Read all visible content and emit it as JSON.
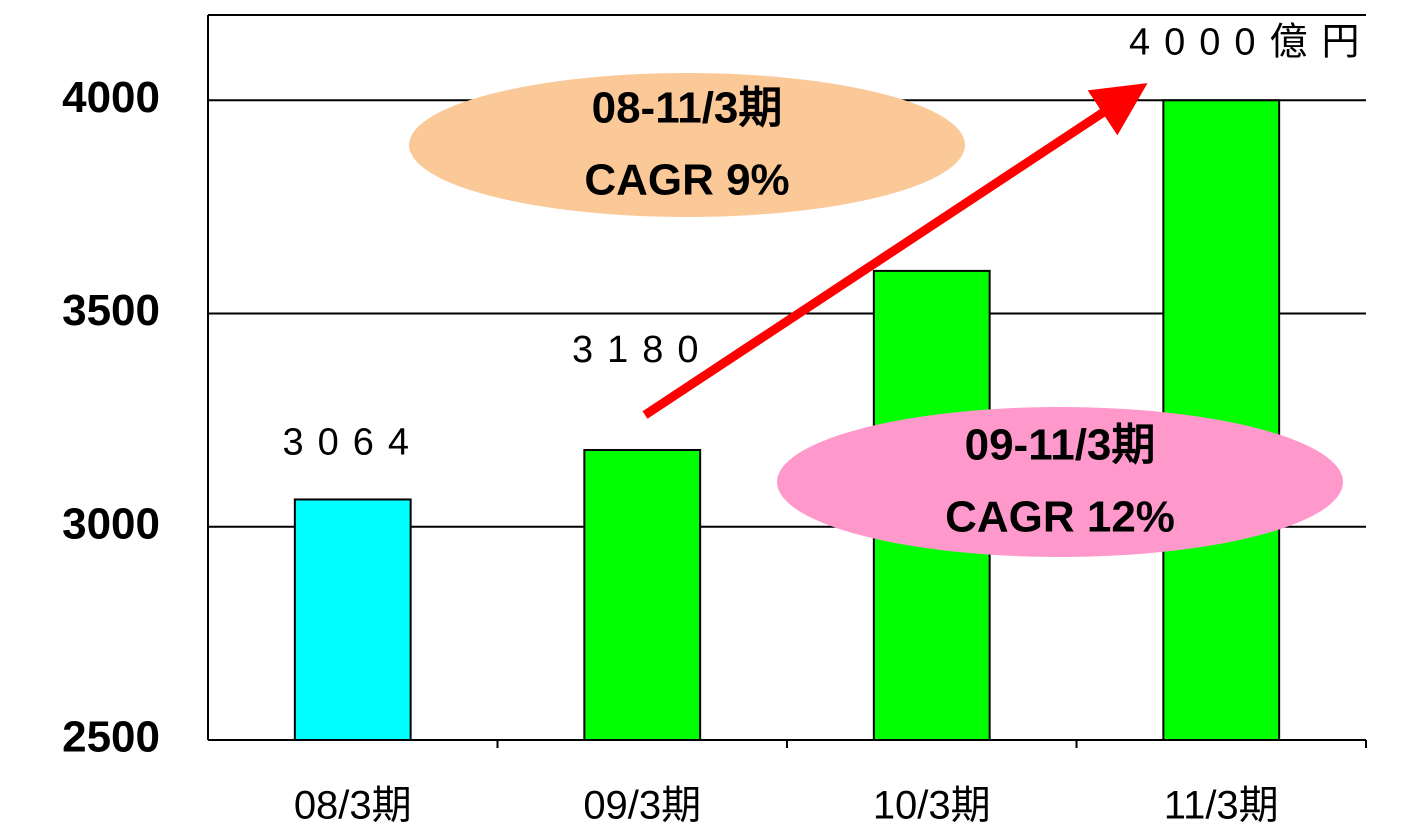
{
  "chart_data": {
    "type": "bar",
    "categories": [
      "08/3期",
      "09/3期",
      "10/3期",
      "11/3期"
    ],
    "values": [
      3064,
      3180,
      3600,
      4000
    ],
    "value_labels": [
      "3064",
      "3180",
      null,
      "4000億円"
    ],
    "colors": [
      "#00ffff",
      "#00ff00",
      "#00ff00",
      "#00ff00"
    ],
    "ylim": [
      2500,
      4200
    ],
    "yticks": [
      2500,
      3000,
      3500,
      4000
    ],
    "grid": true,
    "annotations": [
      {
        "lines": [
          "08-11/3期",
          "CAGR  9%"
        ],
        "color": "#fbc898"
      },
      {
        "lines": [
          "09-11/3期",
          "CAGR  12%"
        ],
        "color": "#ff99cc"
      }
    ]
  }
}
